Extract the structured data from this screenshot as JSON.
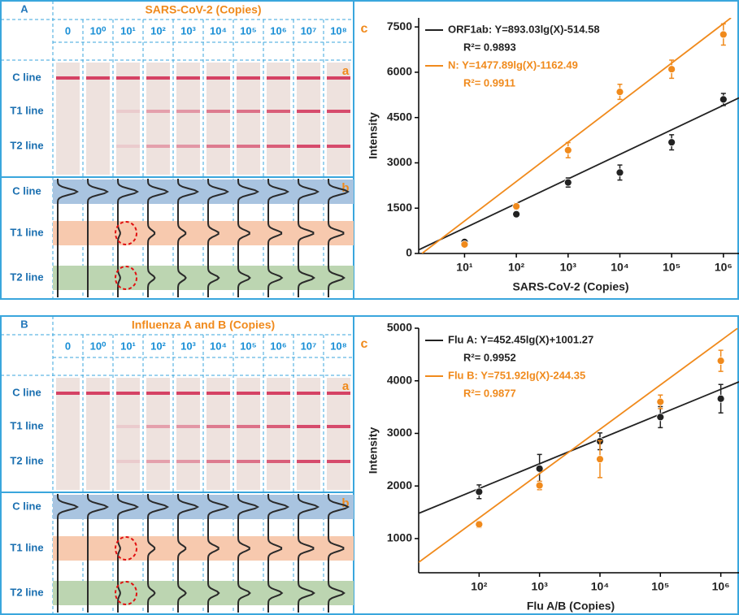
{
  "panels": [
    {
      "label": "A",
      "title": "SARS-CoV-2 (Copies)",
      "columns": [
        "0",
        "10⁰",
        "10¹",
        "10²",
        "10³",
        "10⁴",
        "10⁵",
        "10⁶",
        "10⁷",
        "10⁸"
      ],
      "strip_label": "a",
      "profile_label": "b",
      "rows": [
        "C line",
        "T1 line",
        "T2 line"
      ]
    },
    {
      "label": "B",
      "title": "Influenza A and B (Copies)",
      "columns": [
        "0",
        "10⁰",
        "10¹",
        "10²",
        "10³",
        "10⁴",
        "10⁵",
        "10⁶",
        "10⁷",
        "10⁸"
      ],
      "strip_label": "a",
      "profile_label": "b",
      "rows": [
        "C line",
        "T1 line",
        "T2 line"
      ]
    }
  ],
  "chart_data": [
    {
      "type": "scatter",
      "panel_label": "c",
      "xlabel": "SARS-CoV-2  (Copies)",
      "ylabel": "Intensity",
      "log_x": true,
      "xlim": [
        1.3,
        2000000
      ],
      "xticks": [
        {
          "value": 10,
          "label": "10¹"
        },
        {
          "value": 100,
          "label": "10²"
        },
        {
          "value": 1000,
          "label": "10³"
        },
        {
          "value": 10000,
          "label": "10⁴"
        },
        {
          "value": 100000,
          "label": "10⁵"
        },
        {
          "value": 1000000,
          "label": "10⁶"
        }
      ],
      "ylim": [
        0,
        7800
      ],
      "yticks": [
        0,
        1500,
        3000,
        4500,
        6000,
        7500
      ],
      "series": [
        {
          "name": "ORF1ab: Y=893.03lg(X)-514.58",
          "r2": "R²= 0.9893",
          "color": "#222222",
          "x": [
            10,
            100,
            1000,
            10000,
            100000,
            1000000
          ],
          "values": [
            380,
            1300,
            2350,
            2680,
            3680,
            5100
          ],
          "errors": [
            50,
            60,
            150,
            250,
            250,
            200
          ],
          "fit": {
            "x": [
              1.3,
              2000000
            ],
            "values": [
              120,
              5150
            ]
          }
        },
        {
          "name": "N: Y=1477.89lg(X)-1162.49",
          "r2": "R²= 0.9911",
          "color": "#f08a1c",
          "x": [
            10,
            100,
            1000,
            10000,
            100000,
            1000000
          ],
          "values": [
            300,
            1560,
            3420,
            5350,
            6100,
            7250
          ],
          "errors": [
            60,
            100,
            250,
            250,
            300,
            350
          ],
          "fit": {
            "x": [
              1.5,
              1400000
            ],
            "values": [
              0,
              7800
            ]
          }
        }
      ]
    },
    {
      "type": "scatter",
      "panel_label": "c",
      "xlabel": "Flu A/B (Copies)",
      "ylabel": "Intensity",
      "log_x": true,
      "xlim": [
        10,
        2000000
      ],
      "xticks": [
        {
          "value": 100,
          "label": "10²"
        },
        {
          "value": 1000,
          "label": "10³"
        },
        {
          "value": 10000,
          "label": "10⁴"
        },
        {
          "value": 100000,
          "label": "10⁵"
        },
        {
          "value": 1000000,
          "label": "10⁶"
        }
      ],
      "ylim": [
        350,
        5000
      ],
      "yticks": [
        1000,
        2000,
        3000,
        4000,
        5000
      ],
      "series": [
        {
          "name": "Flu A: Y=452.45lg(X)+1001.27",
          "r2": "R²= 0.9952",
          "color": "#222222",
          "x": [
            100,
            1000,
            10000,
            100000,
            1000000
          ],
          "values": [
            1890,
            2330,
            2850,
            3310,
            3660
          ],
          "errors": [
            130,
            270,
            160,
            200,
            270
          ],
          "fit": {
            "x": [
              10,
              2000000
            ],
            "values": [
              1480,
              3980
            ]
          }
        },
        {
          "name": "Flu B: Y=751.92lg(X)-244.35",
          "r2": "R²= 0.9877",
          "color": "#f08a1c",
          "x": [
            100,
            1000,
            10000,
            100000,
            1000000
          ],
          "values": [
            1270,
            2010,
            2510,
            3600,
            4380
          ],
          "errors": [
            60,
            80,
            350,
            130,
            200
          ],
          "fit": {
            "x": [
              10,
              1900000
            ],
            "values": [
              550,
              5000
            ]
          }
        }
      ]
    }
  ]
}
